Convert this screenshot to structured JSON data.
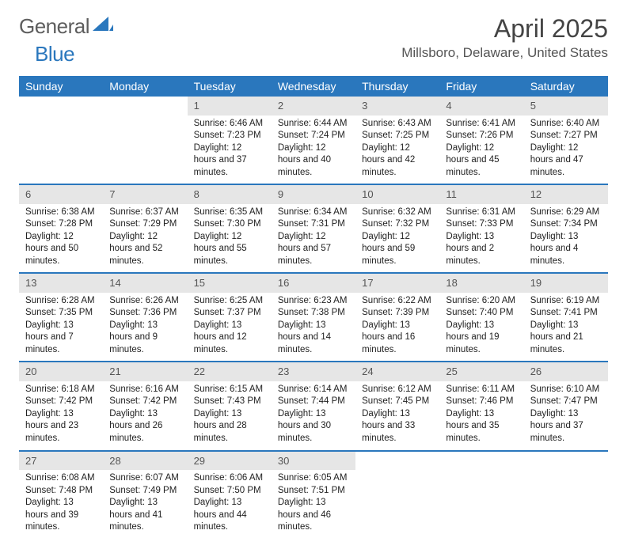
{
  "brand": {
    "part1": "General",
    "part2": "Blue"
  },
  "title": "April 2025",
  "location": "Millsboro, Delaware, United States",
  "colors": {
    "header_bg": "#2a77bd",
    "header_text": "#ffffff",
    "daynum_bg": "#e6e6e6",
    "row_sep": "#2a77bd"
  },
  "day_labels": [
    "Sunday",
    "Monday",
    "Tuesday",
    "Wednesday",
    "Thursday",
    "Friday",
    "Saturday"
  ],
  "weeks": [
    [
      null,
      null,
      {
        "n": "1",
        "sr": "6:46 AM",
        "ss": "7:23 PM",
        "dl": "12 hours and 37 minutes."
      },
      {
        "n": "2",
        "sr": "6:44 AM",
        "ss": "7:24 PM",
        "dl": "12 hours and 40 minutes."
      },
      {
        "n": "3",
        "sr": "6:43 AM",
        "ss": "7:25 PM",
        "dl": "12 hours and 42 minutes."
      },
      {
        "n": "4",
        "sr": "6:41 AM",
        "ss": "7:26 PM",
        "dl": "12 hours and 45 minutes."
      },
      {
        "n": "5",
        "sr": "6:40 AM",
        "ss": "7:27 PM",
        "dl": "12 hours and 47 minutes."
      }
    ],
    [
      {
        "n": "6",
        "sr": "6:38 AM",
        "ss": "7:28 PM",
        "dl": "12 hours and 50 minutes."
      },
      {
        "n": "7",
        "sr": "6:37 AM",
        "ss": "7:29 PM",
        "dl": "12 hours and 52 minutes."
      },
      {
        "n": "8",
        "sr": "6:35 AM",
        "ss": "7:30 PM",
        "dl": "12 hours and 55 minutes."
      },
      {
        "n": "9",
        "sr": "6:34 AM",
        "ss": "7:31 PM",
        "dl": "12 hours and 57 minutes."
      },
      {
        "n": "10",
        "sr": "6:32 AM",
        "ss": "7:32 PM",
        "dl": "12 hours and 59 minutes."
      },
      {
        "n": "11",
        "sr": "6:31 AM",
        "ss": "7:33 PM",
        "dl": "13 hours and 2 minutes."
      },
      {
        "n": "12",
        "sr": "6:29 AM",
        "ss": "7:34 PM",
        "dl": "13 hours and 4 minutes."
      }
    ],
    [
      {
        "n": "13",
        "sr": "6:28 AM",
        "ss": "7:35 PM",
        "dl": "13 hours and 7 minutes."
      },
      {
        "n": "14",
        "sr": "6:26 AM",
        "ss": "7:36 PM",
        "dl": "13 hours and 9 minutes."
      },
      {
        "n": "15",
        "sr": "6:25 AM",
        "ss": "7:37 PM",
        "dl": "13 hours and 12 minutes."
      },
      {
        "n": "16",
        "sr": "6:23 AM",
        "ss": "7:38 PM",
        "dl": "13 hours and 14 minutes."
      },
      {
        "n": "17",
        "sr": "6:22 AM",
        "ss": "7:39 PM",
        "dl": "13 hours and 16 minutes."
      },
      {
        "n": "18",
        "sr": "6:20 AM",
        "ss": "7:40 PM",
        "dl": "13 hours and 19 minutes."
      },
      {
        "n": "19",
        "sr": "6:19 AM",
        "ss": "7:41 PM",
        "dl": "13 hours and 21 minutes."
      }
    ],
    [
      {
        "n": "20",
        "sr": "6:18 AM",
        "ss": "7:42 PM",
        "dl": "13 hours and 23 minutes."
      },
      {
        "n": "21",
        "sr": "6:16 AM",
        "ss": "7:42 PM",
        "dl": "13 hours and 26 minutes."
      },
      {
        "n": "22",
        "sr": "6:15 AM",
        "ss": "7:43 PM",
        "dl": "13 hours and 28 minutes."
      },
      {
        "n": "23",
        "sr": "6:14 AM",
        "ss": "7:44 PM",
        "dl": "13 hours and 30 minutes."
      },
      {
        "n": "24",
        "sr": "6:12 AM",
        "ss": "7:45 PM",
        "dl": "13 hours and 33 minutes."
      },
      {
        "n": "25",
        "sr": "6:11 AM",
        "ss": "7:46 PM",
        "dl": "13 hours and 35 minutes."
      },
      {
        "n": "26",
        "sr": "6:10 AM",
        "ss": "7:47 PM",
        "dl": "13 hours and 37 minutes."
      }
    ],
    [
      {
        "n": "27",
        "sr": "6:08 AM",
        "ss": "7:48 PM",
        "dl": "13 hours and 39 minutes."
      },
      {
        "n": "28",
        "sr": "6:07 AM",
        "ss": "7:49 PM",
        "dl": "13 hours and 41 minutes."
      },
      {
        "n": "29",
        "sr": "6:06 AM",
        "ss": "7:50 PM",
        "dl": "13 hours and 44 minutes."
      },
      {
        "n": "30",
        "sr": "6:05 AM",
        "ss": "7:51 PM",
        "dl": "13 hours and 46 minutes."
      },
      null,
      null,
      null
    ]
  ],
  "labels": {
    "sunrise": "Sunrise: ",
    "sunset": "Sunset: ",
    "daylight": "Daylight: "
  }
}
